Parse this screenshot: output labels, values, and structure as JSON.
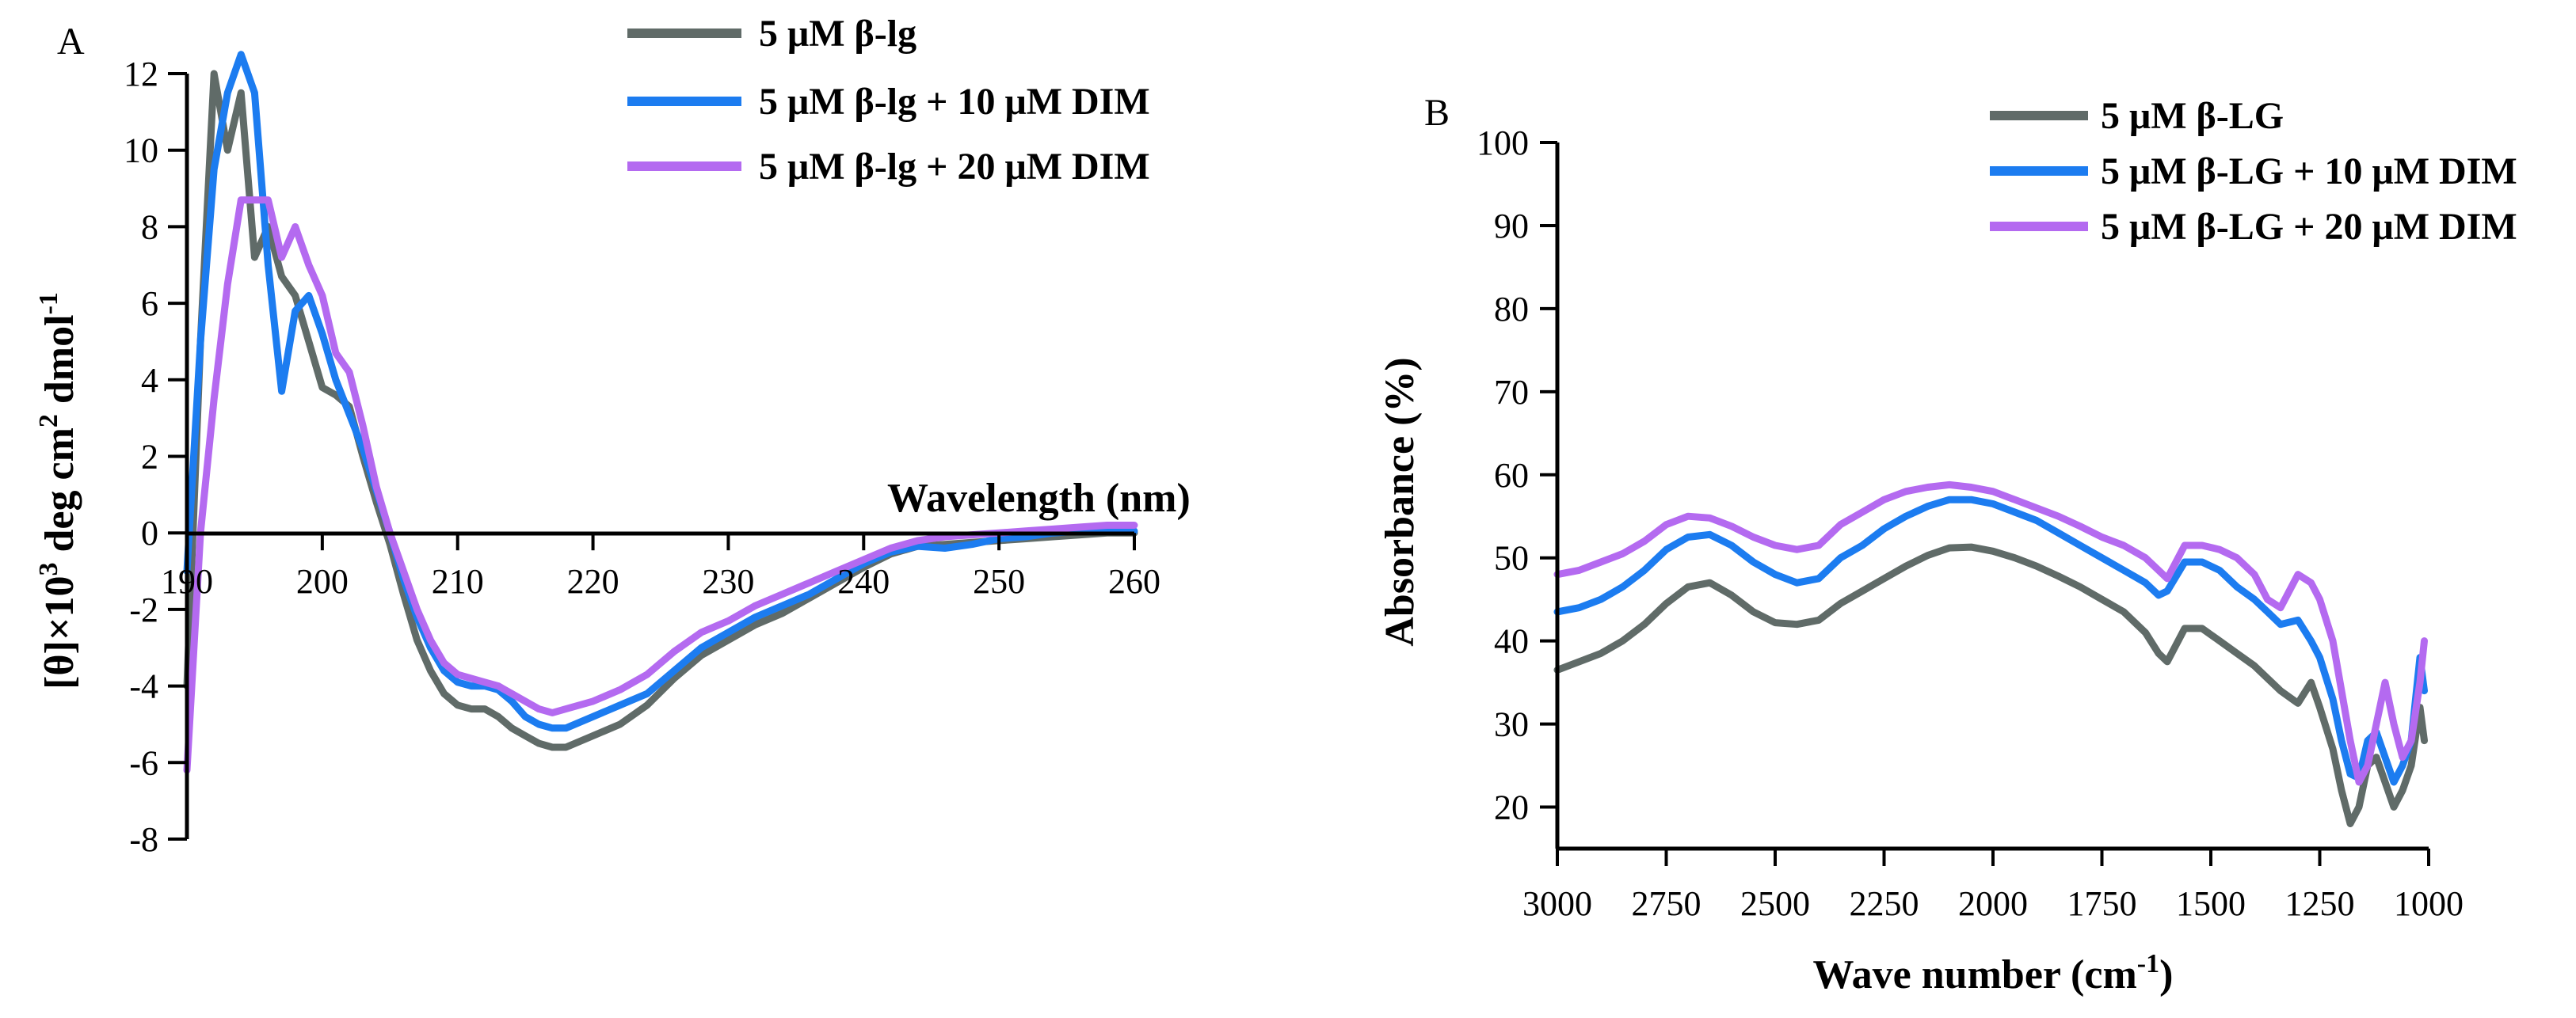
{
  "chart_data": [
    {
      "panel_label": "A",
      "type": "line",
      "title": "",
      "xlabel": "Wavelength (nm)",
      "ylabel_main": "[θ]×10",
      "ylabel_sup1": "3",
      "ylabel_mid": " deg cm",
      "ylabel_sup2": "2",
      "ylabel_end": " dmol",
      "ylabel_sup3": "-1",
      "xlim": [
        190,
        260
      ],
      "ylim": [
        -8,
        12
      ],
      "xticks": [
        190,
        200,
        210,
        220,
        230,
        240,
        250,
        260
      ],
      "yticks": [
        -8,
        -6,
        -4,
        -2,
        0,
        2,
        4,
        6,
        8,
        10,
        12
      ],
      "legend_position": "top-right",
      "series": [
        {
          "name": "5 μM β-lg",
          "color": "#606b68",
          "x": [
            190,
            191,
            192,
            193,
            194,
            195,
            196,
            197,
            198,
            199,
            200,
            201,
            202,
            203,
            204,
            205,
            206,
            207,
            208,
            209,
            210,
            211,
            212,
            213,
            214,
            215,
            216,
            217,
            218,
            220,
            222,
            224,
            226,
            228,
            230,
            232,
            234,
            236,
            238,
            240,
            242,
            244,
            246,
            248,
            250,
            252,
            254,
            256,
            258,
            260
          ],
          "y": [
            -4,
            5,
            12,
            10,
            11.5,
            7.2,
            8,
            6.7,
            6.2,
            5,
            3.8,
            3.6,
            3.3,
            2,
            0.8,
            -0.3,
            -1.6,
            -2.8,
            -3.6,
            -4.2,
            -4.5,
            -4.6,
            -4.6,
            -4.8,
            -5.1,
            -5.3,
            -5.5,
            -5.6,
            -5.6,
            -5.3,
            -5.0,
            -4.5,
            -3.8,
            -3.2,
            -2.8,
            -2.4,
            -2.1,
            -1.7,
            -1.3,
            -0.9,
            -0.55,
            -0.35,
            -0.3,
            -0.25,
            -0.2,
            -0.15,
            -0.1,
            -0.05,
            0,
            0
          ]
        },
        {
          "name": "5 μM β-lg + 10 μM DIM",
          "color": "#1c7cf0",
          "x": [
            190,
            191,
            192,
            193,
            194,
            195,
            196,
            197,
            198,
            199,
            200,
            201,
            202,
            203,
            204,
            205,
            206,
            207,
            208,
            209,
            210,
            211,
            212,
            213,
            214,
            215,
            216,
            217,
            218,
            220,
            222,
            224,
            226,
            228,
            230,
            232,
            234,
            236,
            238,
            240,
            242,
            244,
            246,
            248,
            250,
            252,
            254,
            256,
            258,
            260
          ],
          "y": [
            -1,
            5,
            9.5,
            11.5,
            12.5,
            11.5,
            7,
            3.7,
            5.8,
            6.2,
            5.2,
            4,
            3.1,
            2.2,
            1.1,
            0,
            -1.2,
            -2.2,
            -3.0,
            -3.6,
            -3.9,
            -4.0,
            -4.0,
            -4.1,
            -4.4,
            -4.8,
            -5.0,
            -5.1,
            -5.1,
            -4.8,
            -4.5,
            -4.2,
            -3.6,
            -3.0,
            -2.6,
            -2.2,
            -1.9,
            -1.6,
            -1.2,
            -0.8,
            -0.5,
            -0.35,
            -0.4,
            -0.3,
            -0.15,
            -0.1,
            0,
            0.05,
            0.05,
            0.05
          ]
        },
        {
          "name": "5 μM β-lg + 20 μM DIM",
          "color": "#b46af0",
          "x": [
            190,
            191,
            192,
            193,
            194,
            195,
            196,
            197,
            198,
            199,
            200,
            201,
            202,
            203,
            204,
            205,
            206,
            207,
            208,
            209,
            210,
            211,
            212,
            213,
            214,
            215,
            216,
            217,
            218,
            220,
            222,
            224,
            226,
            228,
            230,
            232,
            234,
            236,
            238,
            240,
            242,
            244,
            246,
            248,
            250,
            252,
            254,
            256,
            258,
            260
          ],
          "y": [
            -6.2,
            0,
            3.5,
            6.5,
            8.7,
            8.7,
            8.7,
            7.2,
            8,
            7,
            6.2,
            4.7,
            4.2,
            2.8,
            1.2,
            0,
            -1.0,
            -2.0,
            -2.8,
            -3.4,
            -3.7,
            -3.8,
            -3.9,
            -4.0,
            -4.2,
            -4.4,
            -4.6,
            -4.7,
            -4.6,
            -4.4,
            -4.1,
            -3.7,
            -3.1,
            -2.6,
            -2.3,
            -1.9,
            -1.6,
            -1.3,
            -1.0,
            -0.7,
            -0.4,
            -0.2,
            -0.1,
            -0.05,
            0,
            0.05,
            0.1,
            0.15,
            0.2,
            0.2
          ]
        }
      ]
    },
    {
      "panel_label": "B",
      "type": "line",
      "title": "",
      "xlabel_main": "Wave number (cm",
      "xlabel_sup": "-1",
      "xlabel_end": ")",
      "ylabel": "Absorbance (%)",
      "xlim": [
        3000,
        1000
      ],
      "ylim": [
        15,
        100
      ],
      "xticks": [
        3000,
        2750,
        2500,
        2250,
        2000,
        1750,
        1500,
        1250,
        1000
      ],
      "yticks": [
        20,
        30,
        40,
        50,
        60,
        70,
        80,
        90,
        100
      ],
      "legend_position": "top-right",
      "series": [
        {
          "name": "5 μM β-LG",
          "color": "#606b68",
          "x": [
            3000,
            2950,
            2900,
            2850,
            2800,
            2750,
            2700,
            2650,
            2600,
            2550,
            2500,
            2450,
            2400,
            2350,
            2300,
            2250,
            2200,
            2150,
            2100,
            2050,
            2000,
            1950,
            1900,
            1850,
            1800,
            1750,
            1700,
            1650,
            1620,
            1600,
            1560,
            1520,
            1480,
            1440,
            1400,
            1370,
            1340,
            1300,
            1270,
            1250,
            1220,
            1200,
            1180,
            1160,
            1140,
            1120,
            1100,
            1080,
            1060,
            1040,
            1020,
            1010
          ],
          "y": [
            36.5,
            37.5,
            38.5,
            40,
            42,
            44.5,
            46.5,
            47,
            45.5,
            43.5,
            42.2,
            42,
            42.5,
            44.5,
            46,
            47.5,
            49,
            50.3,
            51.2,
            51.3,
            50.8,
            50,
            49,
            47.8,
            46.5,
            45,
            43.5,
            41,
            38.5,
            37.5,
            41.5,
            41.5,
            40,
            38.5,
            37,
            35.5,
            34,
            32.5,
            35,
            32,
            27,
            22,
            18,
            20,
            25,
            26,
            23,
            20,
            22,
            25,
            32,
            28
          ]
        },
        {
          "name": "5 μM β-LG + 10 μM DIM",
          "color": "#1c7cf0",
          "x": [
            3000,
            2950,
            2900,
            2850,
            2800,
            2750,
            2700,
            2650,
            2600,
            2550,
            2500,
            2450,
            2400,
            2350,
            2300,
            2250,
            2200,
            2150,
            2100,
            2050,
            2000,
            1950,
            1900,
            1850,
            1800,
            1750,
            1700,
            1650,
            1620,
            1600,
            1560,
            1520,
            1480,
            1440,
            1400,
            1370,
            1340,
            1300,
            1270,
            1250,
            1220,
            1200,
            1180,
            1160,
            1140,
            1120,
            1100,
            1080,
            1060,
            1040,
            1020,
            1010
          ],
          "y": [
            43.5,
            44,
            45,
            46.5,
            48.5,
            51,
            52.5,
            52.8,
            51.5,
            49.5,
            48,
            47,
            47.5,
            50,
            51.5,
            53.5,
            55,
            56.2,
            57,
            57,
            56.5,
            55.5,
            54.5,
            53,
            51.5,
            50,
            48.5,
            47,
            45.5,
            46,
            49.5,
            49.5,
            48.5,
            46.5,
            45,
            43.5,
            42,
            42.5,
            40,
            38,
            33,
            28,
            24,
            23.5,
            28,
            29,
            26,
            23,
            25,
            28,
            38,
            34
          ]
        },
        {
          "name": "5 μM β-LG + 20 μM DIM",
          "color": "#b46af0",
          "x": [
            3000,
            2950,
            2900,
            2850,
            2800,
            2750,
            2700,
            2650,
            2600,
            2550,
            2500,
            2450,
            2400,
            2350,
            2300,
            2250,
            2200,
            2150,
            2100,
            2050,
            2000,
            1950,
            1900,
            1850,
            1800,
            1750,
            1700,
            1650,
            1620,
            1600,
            1560,
            1520,
            1480,
            1440,
            1400,
            1370,
            1340,
            1300,
            1270,
            1250,
            1220,
            1200,
            1180,
            1160,
            1140,
            1120,
            1100,
            1080,
            1060,
            1040,
            1020,
            1010
          ],
          "y": [
            48,
            48.5,
            49.5,
            50.5,
            52,
            54,
            55,
            54.8,
            53.8,
            52.5,
            51.5,
            51,
            51.5,
            54,
            55.5,
            57,
            58,
            58.5,
            58.8,
            58.5,
            58,
            57,
            56,
            55,
            53.8,
            52.5,
            51.5,
            50,
            48.5,
            47.5,
            51.5,
            51.5,
            51,
            50,
            48,
            45,
            44,
            48,
            47,
            45,
            40,
            34,
            28,
            23,
            25,
            30,
            35,
            30,
            26,
            28,
            35,
            40
          ]
        }
      ]
    }
  ]
}
